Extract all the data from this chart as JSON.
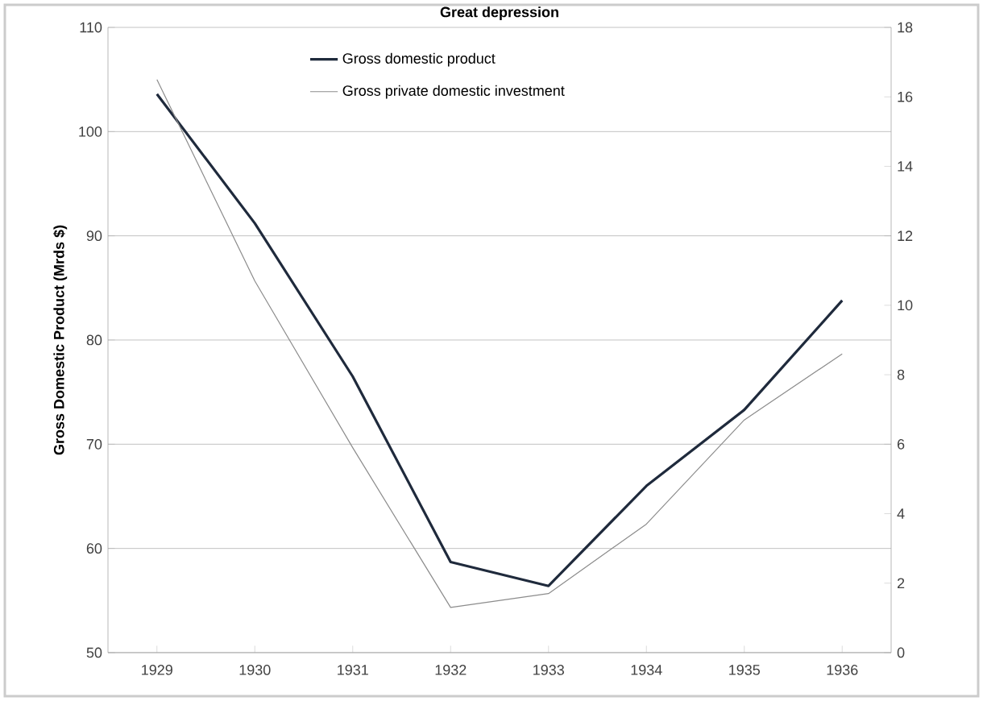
{
  "chart_data": {
    "type": "line",
    "title": "Great depression",
    "ylabel": "Gross Domestic Product (Mrds $)",
    "categories": [
      "1929",
      "1930",
      "1931",
      "1932",
      "1933",
      "1934",
      "1935",
      "1936"
    ],
    "series": [
      {
        "name": "Gross domestic product",
        "color": "#1f2a3c",
        "values": [
          103.6,
          91.2,
          76.5,
          58.7,
          56.4,
          66.0,
          73.3,
          83.8
        ]
      },
      {
        "name": "Gross private domestic investment",
        "color": "#8c8c8c",
        "axis": "y2",
        "values": [
          16.5,
          10.7,
          5.9,
          1.3,
          1.7,
          3.7,
          6.7,
          8.6
        ]
      }
    ],
    "ylim": [
      50,
      110
    ],
    "yticks": [
      50,
      60,
      70,
      80,
      90,
      100,
      110
    ],
    "y2lim": [
      0,
      18
    ],
    "y2ticks": [
      0,
      2,
      4,
      6,
      8,
      10,
      12,
      14,
      16,
      18
    ],
    "grid": "y",
    "legend": "top",
    "marker": "none",
    "line_style": "solid"
  }
}
